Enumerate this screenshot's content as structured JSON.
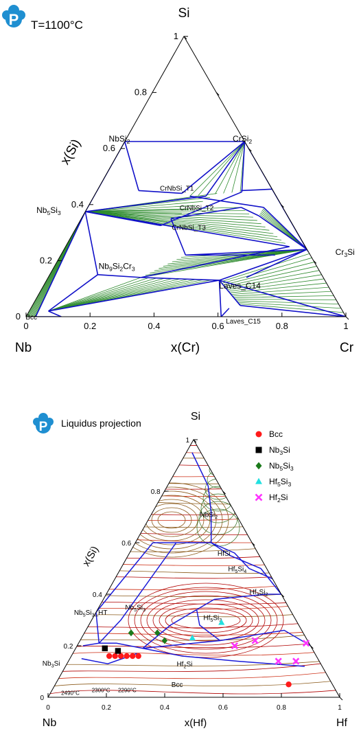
{
  "top_diagram": {
    "title": "T=1100°C",
    "logo_letter": "P",
    "apex_labels": {
      "top": "Si",
      "left": "Nb",
      "right": "Cr"
    },
    "left_axis_label": "x(Si)",
    "bottom_axis_label": "x(Cr)",
    "left_ticks": [
      "0",
      "0.2",
      "0.4",
      "0.6",
      "0.8",
      "1"
    ],
    "bottom_ticks": [
      "0",
      "0.2",
      "0.4",
      "0.6",
      "0.8",
      "1"
    ],
    "phase_labels": [
      {
        "id": "nbsi2",
        "text": "NbSi",
        "sub": "2",
        "a": 0.06,
        "b": 0.62
      },
      {
        "id": "crsi2",
        "text": "CrSi",
        "sub": "2",
        "a": 0.34,
        "b": 0.62
      },
      {
        "id": "nb5si3",
        "text": "Nb",
        "sub": "5",
        "text2": "Si",
        "sub2": "3",
        "a": 0.0,
        "b": 0.37
      },
      {
        "id": "t1",
        "text": "CrNbSi_T1",
        "a": 0.25,
        "b": 0.45
      },
      {
        "id": "t2",
        "text": "CrNbSi_T2",
        "a": 0.4,
        "b": 0.38
      },
      {
        "id": "t3",
        "text": "CrNbSi_T3",
        "a": 0.41,
        "b": 0.31
      },
      {
        "id": "cr3si",
        "text": "Cr",
        "sub": "3",
        "text2": "Si",
        "a": 0.88,
        "b": 0.22
      },
      {
        "id": "nb9si2cr3",
        "text": "Nb",
        "sub": "9",
        "text2": "Si",
        "sub2": "2",
        "text3": "Cr",
        "sub3": "3",
        "a": 0.25,
        "b": 0.17
      },
      {
        "id": "c14",
        "text": "Laves_C14",
        "a": 0.64,
        "b": 0.1
      },
      {
        "id": "bcc",
        "text": "Bcc",
        "a": 0.02,
        "b": 0.0
      },
      {
        "id": "c15",
        "text": "Laves_C15",
        "a": 0.7,
        "b": 0.0
      }
    ],
    "boundaries": [
      [
        [
          0,
          0.625
        ],
        [
          0.375,
          0.625
        ]
      ],
      [
        [
          0,
          0.625
        ],
        [
          0,
          0.375
        ]
      ],
      [
        [
          0,
          0.625
        ],
        [
          0.13,
          0.45
        ]
      ],
      [
        [
          0.13,
          0.45
        ],
        [
          0.27,
          0.44
        ]
      ],
      [
        [
          0.27,
          0.44
        ],
        [
          0.375,
          0.625
        ]
      ],
      [
        [
          0.375,
          0.625
        ],
        [
          0.35,
          0.43
        ]
      ],
      [
        [
          0.375,
          0.625
        ],
        [
          0.455,
          0.445
        ]
      ],
      [
        [
          0.375,
          0.625
        ],
        [
          0.76,
          0.24
        ]
      ],
      [
        [
          0.3,
          0.43
        ],
        [
          0.55,
          0.39
        ]
      ],
      [
        [
          0.55,
          0.39
        ],
        [
          0.76,
          0.24
        ]
      ],
      [
        [
          0.45,
          0.45
        ],
        [
          0.545,
          0.455
        ]
      ],
      [
        [
          0.545,
          0.455
        ],
        [
          0.76,
          0.24
        ]
      ],
      [
        [
          0.0,
          0.375
        ],
        [
          0.35,
          0.43
        ]
      ],
      [
        [
          0.0,
          0.375
        ],
        [
          0.7,
          0.25
        ]
      ],
      [
        [
          0.0,
          0.375
        ],
        [
          0.26,
          0.325
        ]
      ],
      [
        [
          0.26,
          0.325
        ],
        [
          0.455,
          0.445
        ]
      ],
      [
        [
          0.28,
          0.35
        ],
        [
          0.48,
          0.39
        ]
      ],
      [
        [
          0.48,
          0.39
        ],
        [
          0.55,
          0.36
        ]
      ],
      [
        [
          0.55,
          0.36
        ],
        [
          0.76,
          0.24
        ]
      ],
      [
        [
          0.28,
          0.35
        ],
        [
          0.39,
          0.22
        ]
      ],
      [
        [
          0.39,
          0.22
        ],
        [
          0.76,
          0.24
        ]
      ],
      [
        [
          0.39,
          0.22
        ],
        [
          0.67,
          0.22
        ]
      ],
      [
        [
          0.0,
          0.375
        ],
        [
          0.15,
          0.15
        ]
      ],
      [
        [
          0.15,
          0.15
        ],
        [
          0.29,
          0.14
        ]
      ],
      [
        [
          0.29,
          0.14
        ],
        [
          0.54,
          0.13
        ]
      ],
      [
        [
          0.29,
          0.14
        ],
        [
          0.7,
          0.25
        ]
      ],
      [
        [
          0.54,
          0.13
        ],
        [
          0.76,
          0.24
        ]
      ],
      [
        [
          0.54,
          0.13
        ],
        [
          1.0,
          0.0
        ]
      ],
      [
        [
          0.54,
          0.13
        ],
        [
          0.61,
          0.0
        ]
      ],
      [
        [
          0.54,
          0.13
        ],
        [
          0.65,
          0.04
        ]
      ],
      [
        [
          0.65,
          0.04
        ],
        [
          1.0,
          0.0
        ]
      ],
      [
        [
          0.15,
          0.15
        ],
        [
          0.06,
          0.02
        ]
      ],
      [
        [
          0.06,
          0.02
        ],
        [
          0.54,
          0.13
        ]
      ],
      [
        [
          0.03,
          0.0
        ],
        [
          0.0,
          0.375
        ]
      ],
      [
        [
          0.03,
          0.0
        ],
        [
          0.11,
          0.0
        ]
      ],
      [
        [
          0.11,
          0.0
        ],
        [
          0.06,
          0.02
        ]
      ],
      [
        [
          0.61,
          0.0
        ],
        [
          0.62,
          0.03
        ]
      ],
      [
        [
          0.76,
          0.24
        ],
        [
          0.62,
          0.14
        ]
      ],
      [
        [
          0.76,
          0.24
        ],
        [
          0.77,
          0.23
        ]
      ],
      [
        [
          0.76,
          0.24
        ],
        [
          0.73,
          0.28
        ]
      ]
    ],
    "tie_regions": [
      {
        "p1a": [
          0.0,
          0.375
        ],
        "p1b": [
          0.03,
          0.0
        ],
        "p2a": [
          0.0,
          0.375
        ],
        "p2b": [
          0.0,
          0.0
        ],
        "n": 10
      },
      {
        "p1a": [
          0.0,
          0.375
        ],
        "p1b": [
          0.26,
          0.325
        ],
        "p2a": [
          0.0,
          0.375
        ],
        "p2b": [
          0.38,
          0.44
        ],
        "n": 8
      },
      {
        "p1a": [
          0.0,
          0.375
        ],
        "p1b": [
          0.48,
          0.39
        ],
        "p2a": [
          0.0,
          0.375
        ],
        "p2b": [
          0.7,
          0.25
        ],
        "n": 12
      },
      {
        "p1a": [
          0.29,
          0.14
        ],
        "p1b": [
          0.06,
          0.02
        ],
        "p2a": [
          0.54,
          0.13
        ],
        "p2b": [
          0.06,
          0.02
        ],
        "n": 10
      },
      {
        "p1a": [
          0.54,
          0.13
        ],
        "p1b": [
          0.76,
          0.24
        ],
        "p2a": [
          0.65,
          0.04
        ],
        "p2b": [
          1.0,
          0.0
        ],
        "n": 16
      },
      {
        "p1a": [
          0.39,
          0.22
        ],
        "p1b": [
          0.76,
          0.24
        ],
        "p2a": [
          0.29,
          0.14
        ],
        "p2b": [
          0.76,
          0.24
        ],
        "n": 10
      },
      {
        "p1a": [
          0.375,
          0.625
        ],
        "p1b": [
          0.3,
          0.43
        ],
        "p2a": [
          0.375,
          0.625
        ],
        "p2b": [
          0.45,
          0.445
        ],
        "n": 6
      },
      {
        "p1a": [
          0.375,
          0.625
        ],
        "p1b": [
          0.545,
          0.455
        ],
        "p2a": [
          0.375,
          0.625
        ],
        "p2b": [
          0.76,
          0.24
        ],
        "n": 6
      },
      {
        "p1a": [
          0.55,
          0.39
        ],
        "p1b": [
          0.76,
          0.24
        ],
        "p2a": [
          0.55,
          0.36
        ],
        "p2b": [
          0.76,
          0.24
        ],
        "n": 6
      }
    ]
  },
  "bottom_diagram": {
    "title": "Liquidus projection",
    "logo_letter": "P",
    "apex_labels": {
      "top": "Si",
      "left": "Nb",
      "right": "Hf"
    },
    "left_axis_label": "x(Si)",
    "bottom_axis_label": "x(Hf)",
    "left_ticks": [
      "0",
      "0.2",
      "0.4",
      "0.6",
      "0.8",
      "1"
    ],
    "bottom_ticks": [
      "0",
      "0.2",
      "0.4",
      "0.6",
      "0.8",
      "1"
    ],
    "legend": [
      {
        "label": "Bcc",
        "shape": "circle",
        "color": "#ff1a1a"
      },
      {
        "label": "Nb",
        "sub": "3",
        "label2": "Si",
        "shape": "square",
        "color": "#000000"
      },
      {
        "label": "Nb",
        "sub": "5",
        "label2": "Si",
        "sub2": "3",
        "shape": "diamond",
        "color": "#1b7a1b"
      },
      {
        "label": "Hf",
        "sub": "5",
        "label2": "Si",
        "sub2": "3",
        "shape": "triangle",
        "color": "#22e0e0"
      },
      {
        "label": "Hf",
        "sub": "2",
        "label2": "Si",
        "shape": "cross",
        "color": "#ff33ff"
      }
    ],
    "region_labels": [
      {
        "id": "nbsi2",
        "text": "NbSi",
        "sub": "2",
        "a": 0.2,
        "b": 0.7
      },
      {
        "id": "hfsi",
        "text": "HfSi",
        "a": 0.33,
        "b": 0.55
      },
      {
        "id": "hf5si4",
        "text": "Hf",
        "sub": "5",
        "text2": "Si",
        "sub2": "4",
        "a": 0.42,
        "b": 0.49
      },
      {
        "id": "hf3si2",
        "text": "Hf",
        "sub": "3",
        "text2": "Si",
        "sub2": "2",
        "a": 0.55,
        "b": 0.4
      },
      {
        "id": "nb5siht",
        "text": "Nb",
        "sub": "5",
        "text2": "Si",
        "sub2": "3",
        "text3": "_HT",
        "a": 0.0,
        "b": 0.32
      },
      {
        "id": "nb5si3",
        "text": "Nb",
        "sub": "5",
        "text2": "Si",
        "sub2": "3",
        "a": 0.13,
        "b": 0.34
      },
      {
        "id": "hf5si3",
        "text": "Hf",
        "sub": "5",
        "text2": "Si",
        "sub2": "3",
        "a": 0.43,
        "b": 0.3
      },
      {
        "id": "nb3si",
        "text": "Nb",
        "sub": "3",
        "text2": "Si",
        "a": 0.0,
        "b": 0.15
      },
      {
        "id": "hf2si",
        "text": "Hf",
        "sub": "2",
        "text2": "Si",
        "a": 0.44,
        "b": 0.12
      },
      {
        "id": "bcc",
        "text": "Bcc",
        "a": 0.45,
        "b": 0.04
      }
    ],
    "temperature_labels": [
      {
        "text": "2490°C",
        "a": 0.04,
        "b": 0.01
      },
      {
        "text": "2300°C",
        "a": 0.14,
        "b": 0.02
      },
      {
        "text": "2290°C",
        "a": 0.23,
        "b": 0.02
      }
    ],
    "boundaries": [
      [
        [
          0.02,
          0.95
        ],
        [
          0.14,
          0.82
        ],
        [
          0.2,
          0.72
        ],
        [
          0.26,
          0.6
        ]
      ],
      [
        [
          0.26,
          0.6
        ],
        [
          0.35,
          0.55
        ],
        [
          0.48,
          0.5
        ],
        [
          0.6,
          0.4
        ]
      ],
      [
        [
          0.26,
          0.6
        ],
        [
          0.36,
          0.56
        ],
        [
          0.44,
          0.5
        ],
        [
          0.54,
          0.46
        ]
      ],
      [
        [
          0.54,
          0.46
        ],
        [
          0.62,
          0.4
        ]
      ],
      [
        [
          0.06,
          0.6
        ],
        [
          0.14,
          0.6
        ],
        [
          0.26,
          0.6
        ]
      ],
      [
        [
          0.06,
          0.6
        ],
        [
          0.02,
          0.42
        ],
        [
          0.0,
          0.33
        ]
      ],
      [
        [
          0.14,
          0.6
        ],
        [
          0.1,
          0.3
        ],
        [
          0.07,
          0.21
        ]
      ],
      [
        [
          0.07,
          0.21
        ],
        [
          0.0,
          0.33
        ]
      ],
      [
        [
          0.07,
          0.21
        ],
        [
          0.02,
          0.2
        ]
      ],
      [
        [
          0.07,
          0.21
        ],
        [
          0.13,
          0.21
        ],
        [
          0.23,
          0.19
        ]
      ],
      [
        [
          0.23,
          0.19
        ],
        [
          0.48,
          0.22
        ],
        [
          0.68,
          0.26
        ],
        [
          0.8,
          0.2
        ]
      ],
      [
        [
          0.23,
          0.19
        ],
        [
          0.38,
          0.16
        ],
        [
          0.58,
          0.14
        ],
        [
          0.82,
          0.12
        ]
      ],
      [
        [
          0.23,
          0.19
        ],
        [
          0.28,
          0.28
        ],
        [
          0.34,
          0.34
        ],
        [
          0.38,
          0.38
        ]
      ],
      [
        [
          0.38,
          0.38
        ],
        [
          0.55,
          0.4
        ],
        [
          0.62,
          0.4
        ]
      ],
      [
        [
          0.34,
          0.34
        ],
        [
          0.38,
          0.28
        ],
        [
          0.48,
          0.22
        ]
      ],
      [
        [
          0.04,
          0.15
        ],
        [
          0.14,
          0.13
        ],
        [
          0.22,
          0.17
        ]
      ]
    ],
    "points": [
      {
        "series": "Bcc",
        "a": 0.13,
        "b": 0.16
      },
      {
        "series": "Bcc",
        "a": 0.15,
        "b": 0.16
      },
      {
        "series": "Bcc",
        "a": 0.17,
        "b": 0.16
      },
      {
        "series": "Bcc",
        "a": 0.19,
        "b": 0.16
      },
      {
        "series": "Bcc",
        "a": 0.21,
        "b": 0.16
      },
      {
        "series": "Bcc",
        "a": 0.23,
        "b": 0.16
      },
      {
        "series": "Bcc",
        "a": 0.8,
        "b": 0.05
      },
      {
        "series": "Nb3Si",
        "a": 0.1,
        "b": 0.19
      },
      {
        "series": "Nb3Si",
        "a": 0.15,
        "b": 0.18
      },
      {
        "series": "Nb5Si3",
        "a": 0.16,
        "b": 0.25
      },
      {
        "series": "Nb5Si3",
        "a": 0.25,
        "b": 0.25
      },
      {
        "series": "Nb5Si3",
        "a": 0.29,
        "b": 0.22
      },
      {
        "series": "Hf5Si3",
        "a": 0.38,
        "b": 0.23
      },
      {
        "series": "Hf5Si3",
        "a": 0.45,
        "b": 0.29
      },
      {
        "series": "Hf2Si",
        "a": 0.54,
        "b": 0.2
      },
      {
        "series": "Hf2Si",
        "a": 0.6,
        "b": 0.22
      },
      {
        "series": "Hf2Si",
        "a": 0.78,
        "b": 0.21
      },
      {
        "series": "Hf2Si",
        "a": 0.72,
        "b": 0.14
      },
      {
        "series": "Hf2Si",
        "a": 0.78,
        "b": 0.14
      }
    ]
  }
}
